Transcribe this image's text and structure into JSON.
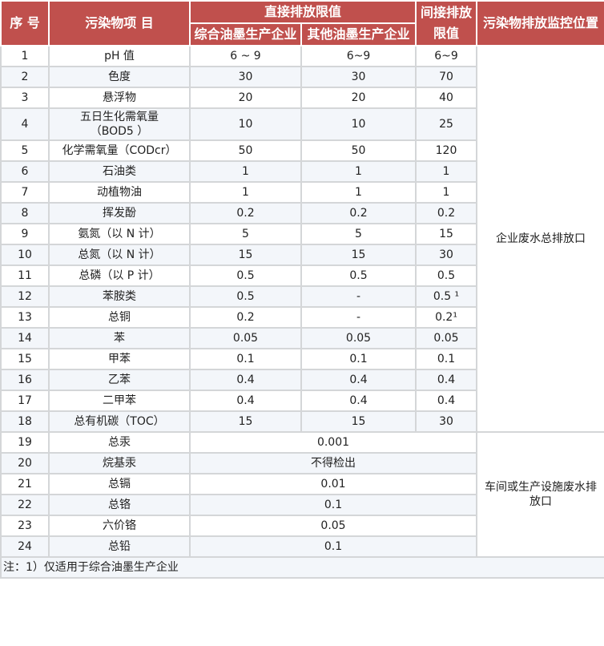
{
  "header": {
    "seq": "序 号",
    "item": "污染物项 目",
    "direct": "直接排放限值",
    "direct_sub1": "综合油墨生产企业",
    "direct_sub2": "其他油墨生产企业",
    "indirect": "间接排放限值",
    "location": "污染物排放监控位置"
  },
  "colors": {
    "header_bg": "#c0504d",
    "stripe": "#f3f6fa"
  },
  "rows_a": [
    {
      "no": "1",
      "item": "pH 值",
      "v1": "6 ~ 9",
      "v2": "6~9",
      "v3": "6~9"
    },
    {
      "no": "2",
      "item": "色度",
      "v1": "30",
      "v2": "30",
      "v3": "70"
    },
    {
      "no": "3",
      "item": "悬浮物",
      "v1": "20",
      "v2": "20",
      "v3": "40"
    },
    {
      "no": "4",
      "item": "五日生化需氧量（BOD5 ）",
      "v1": "10",
      "v2": "10",
      "v3": "25"
    },
    {
      "no": "5",
      "item": "化学需氧量（CODcr）",
      "v1": "50",
      "v2": "50",
      "v3": "120"
    },
    {
      "no": "6",
      "item": "石油类",
      "v1": "1",
      "v2": "1",
      "v3": "1"
    },
    {
      "no": "7",
      "item": "动植物油",
      "v1": "1",
      "v2": "1",
      "v3": "1"
    },
    {
      "no": "8",
      "item": "挥发酚",
      "v1": "0.2",
      "v2": "0.2",
      "v3": "0.2"
    },
    {
      "no": "9",
      "item": "氨氮（以 N 计）",
      "v1": "5",
      "v2": "5",
      "v3": "15"
    },
    {
      "no": "10",
      "item": "总氮（以 N 计）",
      "v1": "15",
      "v2": "15",
      "v3": "30"
    },
    {
      "no": "11",
      "item": "总磷（以 P 计）",
      "v1": "0.5",
      "v2": "0.5",
      "v3": "0.5"
    },
    {
      "no": "12",
      "item": "苯胺类",
      "v1": "0.5",
      "v2": "-",
      "v3": "0.5 ¹"
    },
    {
      "no": "13",
      "item": "总铜",
      "v1": "0.2",
      "v2": "-",
      "v3": "0.2¹"
    },
    {
      "no": "14",
      "item": "苯",
      "v1": "0.05",
      "v2": "0.05",
      "v3": "0.05"
    },
    {
      "no": "15",
      "item": "甲苯",
      "v1": "0.1",
      "v2": "0.1",
      "v3": "0.1"
    },
    {
      "no": "16",
      "item": "乙苯",
      "v1": "0.4",
      "v2": "0.4",
      "v3": "0.4"
    },
    {
      "no": "17",
      "item": "二甲苯",
      "v1": "0.4",
      "v2": "0.4",
      "v3": "0.4"
    },
    {
      "no": "18",
      "item": "总有机碳（TOC）",
      "v1": "15",
      "v2": "15",
      "v3": "30"
    }
  ],
  "location_a": "企业废水总排放口",
  "rows_b": [
    {
      "no": "19",
      "item": "总汞",
      "v": "0.001"
    },
    {
      "no": "20",
      "item": "烷基汞",
      "v": "不得检出"
    },
    {
      "no": "21",
      "item": "总镉",
      "v": "0.01"
    },
    {
      "no": "22",
      "item": "总铬",
      "v": "0.1"
    },
    {
      "no": "23",
      "item": "六价铬",
      "v": "0.05"
    },
    {
      "no": "24",
      "item": "总铅",
      "v": "0.1"
    }
  ],
  "location_b": "车间或生产设施废水排放口",
  "note": "注：1）仅适用于综合油墨生产企业"
}
